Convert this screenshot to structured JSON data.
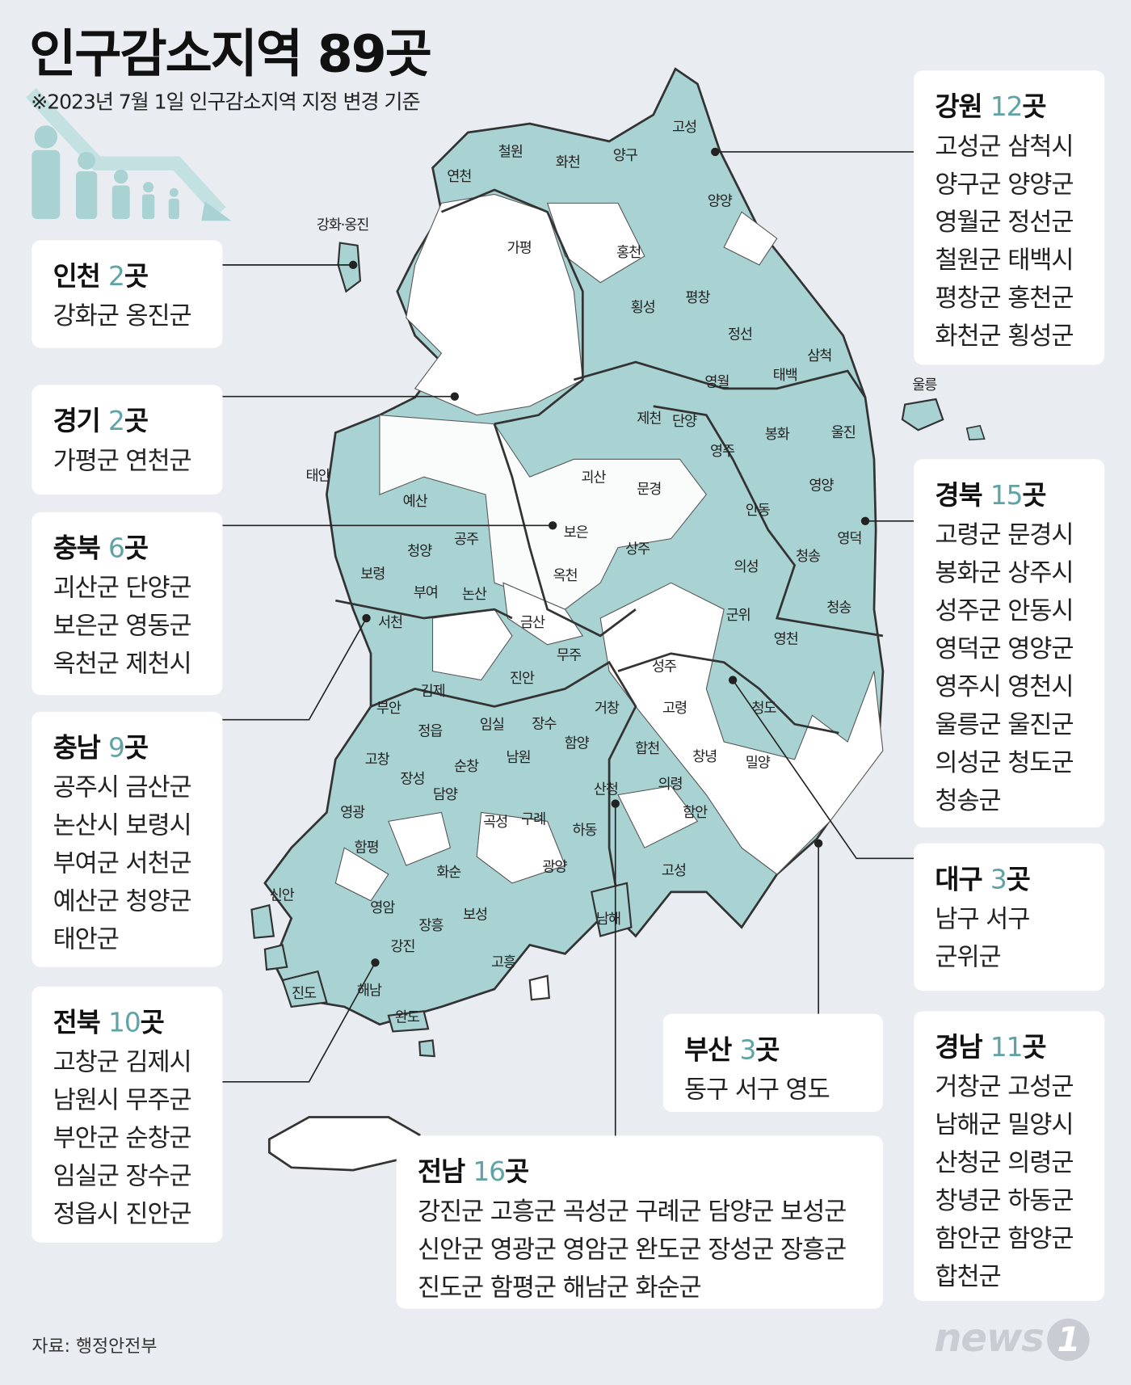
{
  "header": {
    "title": "인구감소지역 89곳",
    "subtitle": "※2023년 7월 1일 인구감소지역 지정 변경 기준"
  },
  "colors": {
    "background": "#e9edf2",
    "decline_area": "#a9d2d3",
    "accent_number": "#5fa3a6",
    "border": "#333333"
  },
  "icons": {
    "illustration": "shrinking-people-with-down-arrow-icon"
  },
  "regions": [
    {
      "name": "강원",
      "count": "12",
      "unit": "곳",
      "lines": [
        "고성군 삼척시",
        "양구군 양양군",
        "영월군 정선군",
        "철원군 태백시",
        "평창군 홍천군",
        "화천군 횡성군"
      ]
    },
    {
      "name": "인천",
      "count": "2",
      "unit": "곳",
      "lines": [
        "강화군 옹진군"
      ]
    },
    {
      "name": "경기",
      "count": "2",
      "unit": "곳",
      "lines": [
        "가평군 연천군"
      ]
    },
    {
      "name": "충북",
      "count": "6",
      "unit": "곳",
      "lines": [
        "괴산군 단양군",
        "보은군 영동군",
        "옥천군 제천시"
      ]
    },
    {
      "name": "충남",
      "count": "9",
      "unit": "곳",
      "lines": [
        "공주시 금산군",
        "논산시 보령시",
        "부여군 서천군",
        "예산군 청양군",
        "태안군"
      ]
    },
    {
      "name": "전북",
      "count": "10",
      "unit": "곳",
      "lines": [
        "고창군 김제시",
        "남원시 무주군",
        "부안군 순창군",
        "임실군 장수군",
        "정읍시 진안군"
      ]
    },
    {
      "name": "경북",
      "count": "15",
      "unit": "곳",
      "lines": [
        "고령군 문경시",
        "봉화군 상주시",
        "성주군 안동시",
        "영덕군 영양군",
        "영주시 영천시",
        "울릉군 울진군",
        "의성군 청도군",
        "청송군"
      ]
    },
    {
      "name": "대구",
      "count": "3",
      "unit": "곳",
      "lines": [
        "남구 서구",
        "군위군"
      ]
    },
    {
      "name": "부산",
      "count": "3",
      "unit": "곳",
      "lines": [
        "동구 서구 영도"
      ]
    },
    {
      "name": "경남",
      "count": "11",
      "unit": "곳",
      "lines": [
        "거창군 고성군",
        "남해군 밀양시",
        "산청군 의령군",
        "창녕군 하동군",
        "함안군 함양군",
        "합천군"
      ]
    },
    {
      "name": "전남",
      "count": "16",
      "unit": "곳",
      "lines": [
        "강진군 고흥군 곡성군 구례군 담양군 보성군",
        "신안군 영광군 영암군 완도군 장성군 장흥군",
        "진도군 함평군 해남군 화순군"
      ]
    }
  ],
  "map_labels": [
    "고성",
    "철원",
    "화천",
    "양구",
    "연천",
    "양양",
    "강화·옹진",
    "가평",
    "홍천",
    "평창",
    "횡성",
    "정선",
    "삼척",
    "태백",
    "영월",
    "울릉",
    "제천",
    "단양",
    "봉화",
    "울진",
    "영주",
    "태안",
    "괴산",
    "문경",
    "영양",
    "예산",
    "안동",
    "보은",
    "공주",
    "영덕",
    "청양",
    "상주",
    "청송",
    "의성",
    "보령",
    "옥천",
    "부여",
    "논산",
    "청송",
    "군위",
    "서천",
    "금산",
    "영천",
    "무주",
    "성주",
    "진안",
    "김제",
    "부안",
    "거창",
    "고령",
    "청도",
    "장수",
    "임실",
    "정읍",
    "합천",
    "함양",
    "창녕",
    "밀양",
    "남원",
    "고창",
    "순창",
    "장성",
    "담양",
    "의령",
    "산청",
    "함안",
    "영광",
    "곡성",
    "구례",
    "함평",
    "하동",
    "화순",
    "광양",
    "고성",
    "신안",
    "영암",
    "남해",
    "보성",
    "장흥",
    "강진",
    "고흥",
    "진도",
    "해남",
    "완도"
  ],
  "footer": {
    "source": "자료: 행정안전부",
    "logo": "news1"
  }
}
